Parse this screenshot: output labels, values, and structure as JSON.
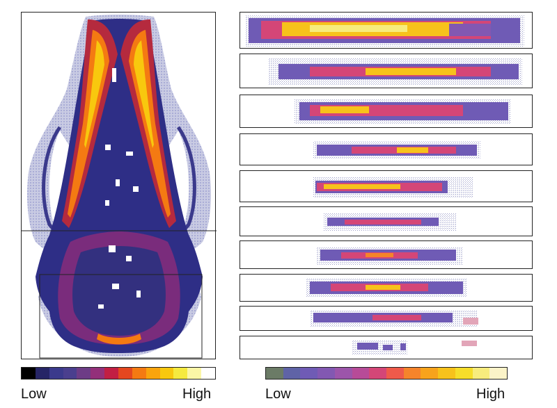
{
  "left_colorbar": {
    "low_label": "Low",
    "high_label": "High",
    "colors": [
      "#000000",
      "#262566",
      "#3b3a8c",
      "#4a3f8e",
      "#6d3c86",
      "#93307a",
      "#c21f43",
      "#e4471f",
      "#f47a12",
      "#f9a40d",
      "#f8c80e",
      "#f5ea3f",
      "#fbf6a6",
      "#ffffff"
    ]
  },
  "right_colorbar": {
    "low_label": "Low",
    "high_label": "High",
    "colors": [
      "#6b7b66",
      "#5f63a6",
      "#6f5bb5",
      "#8258b2",
      "#9c55aa",
      "#b74b98",
      "#d44677",
      "#ef5a4a",
      "#f5842b",
      "#f7a31c",
      "#f7c21b",
      "#f6de2a",
      "#f7ec7d",
      "#fbf3c8"
    ]
  },
  "strips": [
    {
      "pattern": "strip-1"
    },
    {
      "pattern": "strip-2"
    },
    {
      "pattern": "strip-3"
    },
    {
      "pattern": "strip-4"
    },
    {
      "pattern": "strip-5"
    },
    {
      "pattern": "strip-6"
    },
    {
      "pattern": "strip-7"
    },
    {
      "pattern": "strip-8"
    },
    {
      "pattern": "strip-9"
    },
    {
      "pattern": "strip-10"
    }
  ]
}
